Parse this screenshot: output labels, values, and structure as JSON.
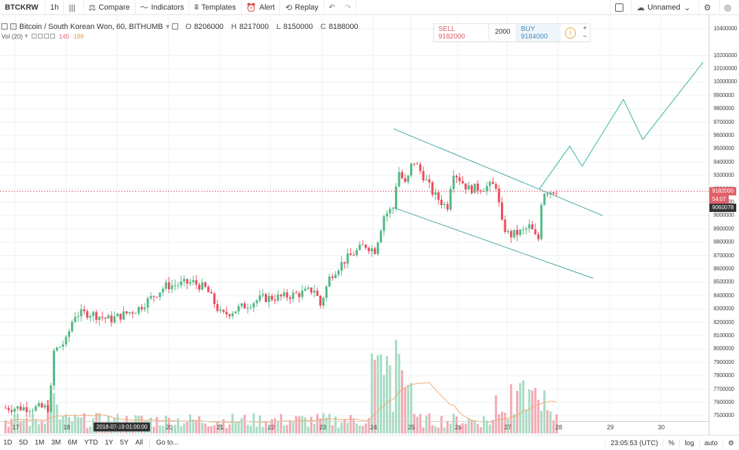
{
  "toolbar": {
    "symbol": "BTCKRW",
    "interval": "1h",
    "compare": "Compare",
    "indicators": "Indicators",
    "templates": "Templates",
    "alert": "Alert",
    "replay": "Replay",
    "layout_name": "Unnamed"
  },
  "legend": {
    "title": "Bitcoin / South Korean Won, 60, BITHUMB",
    "open_label": "O",
    "open": "8206000",
    "high_label": "H",
    "high": "8217000",
    "low_label": "L",
    "low": "8150000",
    "close_label": "C",
    "close": "8188000",
    "vol_label": "Vol (20)",
    "vol_value1": "145",
    "vol_value2": "189"
  },
  "trade": {
    "sell_label": "SELL",
    "sell_price": "9182000",
    "quantity": "2000",
    "buy_label": "BUY",
    "buy_price": "9184000",
    "info_icon": "i",
    "plus": "+",
    "minus": "−"
  },
  "price_axis": {
    "ticks": [
      "10400000",
      "10200000",
      "10100000",
      "10000000",
      "9900000",
      "9800000",
      "9700000",
      "9600000",
      "9500000",
      "9400000",
      "9300000",
      "9200000",
      "9100000",
      "9000000",
      "8900000",
      "8800000",
      "8700000",
      "8600000",
      "8500000",
      "8400000",
      "8300000",
      "8200000",
      "8100000",
      "8000000",
      "7900000",
      "7800000",
      "7700000",
      "7600000",
      "7500000"
    ],
    "last_price": "9182000",
    "countdown": "54:07",
    "crosshair_price": "9060078"
  },
  "time_axis": {
    "ticks": [
      "17",
      "18",
      "19",
      "20",
      "21",
      "22",
      "23",
      "24",
      "25",
      "26",
      "27",
      "28",
      "29",
      "30"
    ],
    "crosshair_time": "2018-07-19 01:00:00"
  },
  "bottombar": {
    "ranges": [
      "1D",
      "5D",
      "1M",
      "3M",
      "6M",
      "YTD",
      "1Y",
      "5Y",
      "All"
    ],
    "goto": "Go to...",
    "clock": "23:05:53 (UTC)",
    "percent": "%",
    "log": "log",
    "auto": "auto"
  },
  "colors": {
    "up": "#53b987",
    "down": "#eb4d5c",
    "channel": "#3aa5a0",
    "projection": "#3fb5a3",
    "price_line": "#e0606a",
    "vol_up": "#a8dcc4",
    "vol_down": "#f4a9b3",
    "vol_ma": "#f2a86b"
  },
  "chart_data": {
    "type": "candlestick",
    "symbol": "Bitcoin / South Korean Won, 60, BITHUMB",
    "x_ticks": [
      "17",
      "18",
      "19",
      "20",
      "21",
      "22",
      "23",
      "24",
      "25",
      "26",
      "27",
      "28",
      "29",
      "30"
    ],
    "y_range": [
      7450000,
      10450000
    ],
    "daily_close_approx": [
      {
        "day": "17",
        "close": 7600000
      },
      {
        "day": "18",
        "close": 8250000
      },
      {
        "day": "19",
        "close": 8300000
      },
      {
        "day": "20",
        "close": 8480000
      },
      {
        "day": "21",
        "close": 8250000
      },
      {
        "day": "22",
        "close": 8370000
      },
      {
        "day": "23",
        "close": 8400000
      },
      {
        "day": "24",
        "close": 8900000
      },
      {
        "day": "25",
        "close": 9200000
      },
      {
        "day": "26",
        "close": 9180000
      },
      {
        "day": "27",
        "close": 8800000
      },
      {
        "day": "28",
        "close": 9182000
      }
    ],
    "last_price": 9182000,
    "annotations": [
      "descending channel",
      "projected breakout path"
    ]
  }
}
